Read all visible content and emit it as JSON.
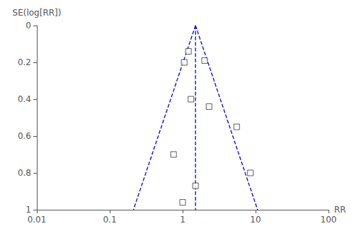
{
  "chart_data": {
    "type": "scatter",
    "title": "",
    "xlabel": "RR",
    "ylabel": "SE(log[RR])",
    "log": "x",
    "xlim": [
      0.01,
      100
    ],
    "xticks": [
      0.01,
      0.1,
      1,
      10,
      100
    ],
    "ylim": [
      0,
      1
    ],
    "yticks": [
      0,
      0.2,
      0.4,
      0.6,
      0.8,
      1
    ],
    "grid": false,
    "series": [
      {
        "type": "scatter",
        "marker": "square",
        "color": "#333333",
        "x": [
          1.2,
          1.05,
          2.0,
          1.3,
          2.3,
          5.5,
          0.75,
          8.5,
          1.5,
          1.0
        ],
        "values": [
          0.14,
          0.2,
          0.19,
          0.4,
          0.44,
          0.55,
          0.7,
          0.8,
          0.87,
          0.96
        ]
      },
      {
        "type": "line",
        "line_style": "dashed",
        "color": "#0000cc",
        "x": [
          1.5,
          10.6489906
        ],
        "values": [
          0,
          1
        ]
      },
      {
        "type": "line",
        "line_style": "dashed",
        "color": "#0000cc",
        "x": [
          1.5,
          0.21128763
        ],
        "values": [
          0,
          1
        ]
      },
      {
        "type": "line",
        "line_style": "dashed",
        "color": "#0000cc",
        "x": [
          1.5,
          1.5
        ],
        "values": [
          0,
          1
        ]
      }
    ]
  }
}
